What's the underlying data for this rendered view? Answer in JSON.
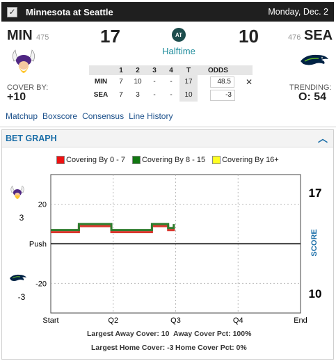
{
  "header": {
    "matchup": "Minnesota at Seattle",
    "date": "Monday, Dec. 2"
  },
  "away": {
    "abbr": "MIN",
    "rotation": "475",
    "score": "17",
    "cover_label": "COVER BY:",
    "cover_value": "+10",
    "logo": "vikings-logo"
  },
  "home": {
    "abbr": "SEA",
    "rotation": "476",
    "score": "10",
    "logo": "seahawks-logo"
  },
  "game": {
    "at_label": "AT",
    "status": "Halftime",
    "trending_label": "TRENDING:",
    "trending_value": "O: 54"
  },
  "box_score": {
    "headers": [
      "1",
      "2",
      "3",
      "4",
      "T",
      "ODDS"
    ],
    "rows": [
      {
        "team": "MIN",
        "q": [
          "7",
          "10",
          "-",
          "-"
        ],
        "total": "17",
        "odds": "48.5"
      },
      {
        "team": "SEA",
        "q": [
          "7",
          "3",
          "-",
          "-"
        ],
        "total": "10",
        "odds": "-3"
      }
    ],
    "close_symbol": "✕"
  },
  "links": [
    "Matchup",
    "Boxscore",
    "Consensus",
    "Line History"
  ],
  "bet_graph": {
    "title": "BET GRAPH",
    "collapse_icon": "chevron-up-icon",
    "legend": [
      {
        "label": "Covering By 0 - 7",
        "color": "#ee1111"
      },
      {
        "label": "Covering By 8 - 15",
        "color": "#117711"
      },
      {
        "label": "Covering By 16+",
        "color": "#ffff22"
      }
    ],
    "away_side_value": "3",
    "home_side_value": "-3",
    "right_top": "17",
    "right_bottom": "10",
    "right_axis_label": "SCORE",
    "push_label": "Push",
    "largest_away_cover": "Largest Away Cover: 10",
    "away_cover_pct": "Away Cover Pct: 100%",
    "largest_home_cover": "Largest Home Cover: -3",
    "home_cover_pct": "Home Cover Pct: 0%"
  },
  "chart_data": {
    "type": "line",
    "title": "",
    "xlabel": "",
    "ylabel": "",
    "x_ticks": [
      "Start",
      "Q2",
      "Q3",
      "Q4",
      "End"
    ],
    "y_ticks": [
      20,
      "Push",
      -20
    ],
    "ylim": [
      -35,
      35
    ],
    "xlim": [
      0,
      4
    ],
    "series": [
      {
        "color": "#2e7d2e",
        "points": [
          [
            0,
            7
          ],
          [
            0.45,
            7
          ],
          [
            0.45,
            10
          ],
          [
            0.97,
            10
          ],
          [
            0.97,
            7
          ],
          [
            1.62,
            7
          ],
          [
            1.62,
            10
          ],
          [
            1.88,
            10
          ],
          [
            1.88,
            8
          ],
          [
            1.97,
            8
          ],
          [
            1.97,
            10
          ]
        ]
      }
    ]
  }
}
